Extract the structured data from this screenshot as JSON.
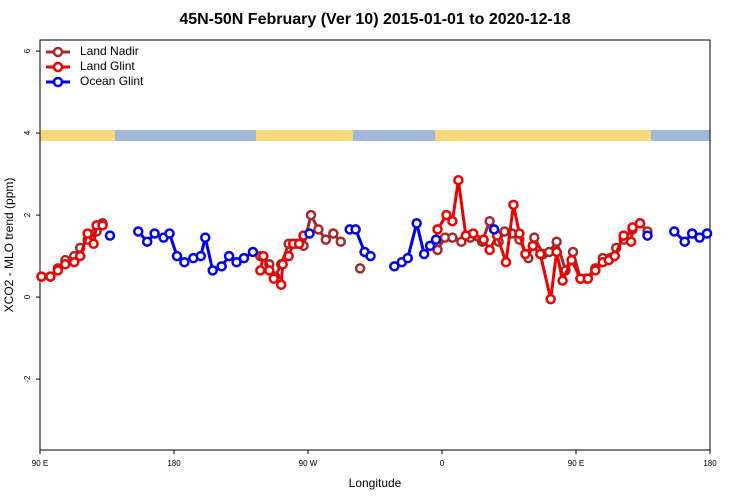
{
  "chart_data": {
    "type": "line",
    "title": "45N-50N February (Ver 10)   2015-01-01 to 2020-12-18",
    "xlabel": "Longitude",
    "ylabel": "XCO2 - MLO trend (ppm)",
    "xlim": [
      90,
      540
    ],
    "xticks": [
      {
        "value": 90,
        "label": "90 E"
      },
      180,
      {
        "value": 270,
        "label": "90 W"
      },
      {
        "value": 360,
        "label": "0"
      },
      {
        "value": 450,
        "label": "90 E"
      },
      {
        "value": 540,
        "label": "180"
      }
    ],
    "ylim": [
      -3.73,
      6.27
    ],
    "yticks": [
      -2,
      0,
      2,
      4,
      6
    ],
    "legend": "top-left",
    "series": [
      {
        "name": "Land Nadir",
        "color": "#a52a2a",
        "x": [
          91,
          97,
          102,
          107,
          113,
          117,
          122,
          128,
          132,
          null,
          238,
          244,
          248,
          252,
          257,
          262,
          267,
          272,
          277,
          282,
          287,
          292,
          null,
          305,
          null,
          357,
          362,
          367,
          373,
          379,
          387,
          392,
          398,
          402,
          407,
          412,
          418,
          422,
          428,
          432,
          437,
          443,
          448,
          453,
          457,
          463,
          468,
          473,
          477,
          482,
          488,
          493,
          498
        ],
        "values": [
          0.5,
          0.5,
          0.7,
          0.9,
          1.0,
          1.2,
          1.4,
          1.6,
          1.8,
          null,
          1.0,
          0.8,
          0.5,
          0.8,
          1.3,
          1.3,
          1.25,
          2.0,
          1.65,
          1.4,
          1.55,
          1.35,
          null,
          0.7,
          null,
          1.15,
          1.45,
          1.45,
          1.35,
          1.45,
          1.35,
          1.85,
          1.35,
          1.6,
          1.55,
          1.4,
          0.95,
          1.45,
          1.05,
          1.1,
          1.35,
          0.65,
          1.1,
          0.45,
          0.45,
          0.7,
          0.95,
          0.95,
          1.2,
          1.4,
          1.65,
          1.8,
          1.6
        ]
      },
      {
        "name": "Land Glint",
        "color": "#ee0000",
        "x": [
          91,
          97,
          102,
          107,
          113,
          117,
          122,
          126,
          128,
          132,
          null,
          238,
          240,
          244,
          247,
          252,
          253,
          257,
          260,
          264,
          267,
          null,
          357,
          363,
          367,
          371,
          376,
          381,
          388,
          392,
          397,
          403,
          408,
          412,
          416,
          421,
          426,
          433,
          437,
          441,
          447,
          453,
          458,
          463,
          468,
          472,
          476,
          482,
          487,
          488,
          493
        ],
        "values": [
          0.5,
          0.5,
          0.65,
          0.8,
          0.85,
          1.0,
          1.55,
          1.3,
          1.75,
          1.75,
          null,
          0.65,
          1.0,
          0.65,
          0.45,
          0.3,
          0.8,
          1.0,
          1.3,
          1.3,
          1.5,
          null,
          1.65,
          2.0,
          1.85,
          2.85,
          1.5,
          1.55,
          1.4,
          1.15,
          1.5,
          0.85,
          2.25,
          1.55,
          1.05,
          1.25,
          1.05,
          -0.05,
          1.1,
          0.4,
          0.9,
          0.45,
          0.45,
          0.65,
          0.85,
          0.9,
          1.0,
          1.5,
          1.35,
          1.7,
          1.8
        ]
      },
      {
        "name": "Ocean Glint",
        "color": "#0000ee",
        "x": [
          137,
          null,
          156,
          162,
          167,
          173,
          177,
          182,
          187,
          193,
          198,
          201,
          206,
          212,
          217,
          222,
          227,
          233,
          null,
          271,
          null,
          298,
          302,
          308,
          312,
          null,
          328,
          333,
          337,
          343,
          348,
          352,
          356,
          null,
          395,
          null,
          498,
          null,
          516,
          523,
          528,
          533,
          538
        ],
        "values": [
          1.5,
          null,
          1.6,
          1.35,
          1.55,
          1.45,
          1.55,
          1.0,
          0.85,
          0.95,
          1.0,
          1.45,
          0.65,
          0.75,
          1.0,
          0.85,
          0.95,
          1.1,
          null,
          1.55,
          null,
          1.65,
          1.65,
          1.1,
          1.0,
          null,
          0.75,
          0.85,
          0.95,
          1.8,
          1.05,
          1.25,
          1.4,
          null,
          1.65,
          null,
          1.5,
          null,
          1.6,
          1.35,
          1.55,
          1.45,
          1.55
        ]
      }
    ]
  }
}
